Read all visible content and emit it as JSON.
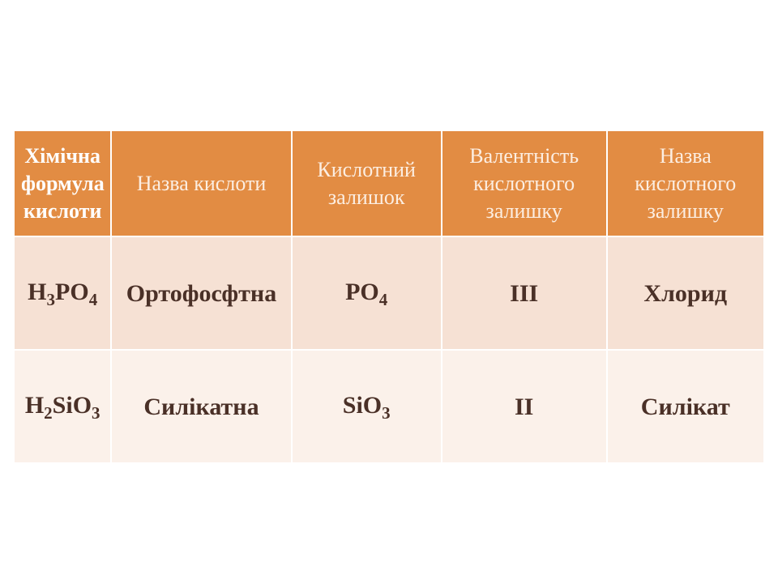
{
  "table": {
    "header_bg": "#e28c43",
    "header_color_bold": "#ffffff",
    "header_color_light": "#fceee2",
    "row_colors": [
      "#f6e1d4",
      "#fbf1ea"
    ],
    "cell_text_color": "#4a3027",
    "columns": [
      {
        "label": "Хімічна формула кислоти",
        "bold": true
      },
      {
        "label": "Назва кислоти",
        "bold": false
      },
      {
        "label": "Кислотний залишок",
        "bold": false
      },
      {
        "label": "Валентність кислотного залишку",
        "bold": false
      },
      {
        "label": "Назва кислотного залишку",
        "bold": false
      }
    ],
    "rows": [
      {
        "formula_html": "H<span class='sub'>3</span>PO<span class='sub'>4</span>",
        "name": "Ортофосфтна",
        "residue_html": "PO<span class='sub'>4</span>",
        "valence": "ІІІ",
        "residue_name": "Хлорид"
      },
      {
        "formula_html": "H<span class='sub'>2</span>SiO<span class='sub'>3</span>",
        "name": "Силікатна",
        "residue_html": "SiO<span class='sub'>3</span>",
        "valence": "ІІ",
        "residue_name": "Силікат"
      }
    ]
  }
}
